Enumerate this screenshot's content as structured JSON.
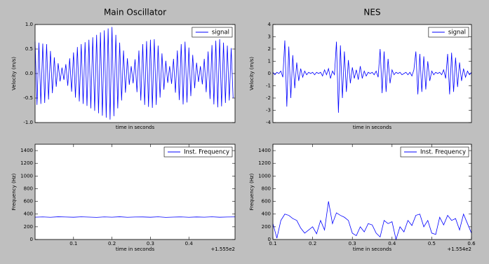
{
  "chart_data": [
    {
      "type": "line",
      "title": "Main Oscillator",
      "xlabel": "time in seconds",
      "ylabel": "Velocity (m/s)",
      "x": [
        0,
        0.005,
        0.01,
        0.015,
        0.02,
        0.025,
        0.03,
        0.035,
        0.04,
        0.045,
        0.05,
        0.055,
        0.06,
        0.065,
        0.07,
        0.075,
        0.08,
        0.085,
        0.09,
        0.095,
        0.1,
        0.105,
        0.11,
        0.115,
        0.12,
        0.125,
        0.13,
        0.135,
        0.14,
        0.145,
        0.15,
        0.155,
        0.16,
        0.165,
        0.17,
        0.175,
        0.18,
        0.185,
        0.19,
        0.195,
        0.2,
        0.205,
        0.21,
        0.215,
        0.22,
        0.225,
        0.23,
        0.235,
        0.24,
        0.245,
        0.25,
        0.255,
        0.26,
        0.265,
        0.27,
        0.275,
        0.28,
        0.285,
        0.29,
        0.295,
        0.3,
        0.305,
        0.31,
        0.315,
        0.32,
        0.325,
        0.33,
        0.335,
        0.34,
        0.345,
        0.35,
        0.355,
        0.36,
        0.365,
        0.37,
        0.375,
        0.38,
        0.385,
        0.39,
        0.395,
        0.4,
        0.405,
        0.41,
        0.415,
        0.42,
        0.425,
        0.43,
        0.435,
        0.44,
        0.445,
        0.45,
        0.455,
        0.46,
        0.465,
        0.47,
        0.475,
        0.48,
        0.485,
        0.49,
        0.495,
        0.5,
        0.505,
        0.51,
        0.515
      ],
      "series": [
        {
          "name": "signal",
          "color": "#0000ff",
          "values": [
            0.65,
            -0.64,
            0.63,
            -0.62,
            0.61,
            -0.6,
            0.6,
            -0.53,
            0.46,
            -0.4,
            0.33,
            -0.27,
            0.21,
            -0.16,
            0.12,
            -0.13,
            0.19,
            -0.25,
            0.31,
            -0.37,
            0.43,
            -0.49,
            0.54,
            -0.57,
            0.6,
            -0.62,
            0.64,
            -0.66,
            0.69,
            -0.71,
            0.74,
            -0.76,
            0.79,
            -0.81,
            0.84,
            -0.86,
            0.88,
            -0.9,
            0.92,
            -0.94,
            0.95,
            -0.87,
            0.79,
            -0.71,
            0.63,
            -0.55,
            0.47,
            -0.39,
            0.31,
            -0.23,
            0.15,
            -0.2,
            0.29,
            -0.38,
            0.47,
            -0.55,
            0.6,
            -0.64,
            0.66,
            -0.68,
            0.69,
            -0.7,
            0.7,
            -0.64,
            0.57,
            -0.49,
            0.41,
            -0.33,
            0.26,
            -0.19,
            0.15,
            -0.21,
            0.3,
            -0.39,
            0.47,
            -0.54,
            0.6,
            -0.63,
            0.65,
            -0.59,
            0.53,
            -0.46,
            0.38,
            -0.3,
            0.22,
            -0.17,
            0.15,
            -0.22,
            0.3,
            -0.38,
            0.45,
            -0.52,
            0.58,
            -0.63,
            0.67,
            -0.69,
            0.7,
            -0.67,
            0.63,
            -0.6,
            0.57,
            -0.55,
            0.52,
            -0.5
          ]
        }
      ],
      "xlim": [
        0,
        0.52
      ],
      "ylim": [
        -1,
        1
      ],
      "yticks": [
        {
          "value": -1,
          "label": "-1.0"
        },
        {
          "value": -0.5,
          "label": "-0.5"
        },
        {
          "value": 0,
          "label": "0.0"
        },
        {
          "value": 0.5,
          "label": "0.5"
        },
        {
          "value": 1,
          "label": "1.0"
        }
      ],
      "legend": "upper right"
    },
    {
      "type": "line",
      "title": "NES",
      "xlabel": "time in seconds",
      "ylabel": "Velocity (m/s)",
      "x": [
        0.1,
        0.105,
        0.11,
        0.115,
        0.12,
        0.125,
        0.13,
        0.135,
        0.14,
        0.145,
        0.15,
        0.155,
        0.16,
        0.165,
        0.17,
        0.175,
        0.18,
        0.185,
        0.19,
        0.195,
        0.2,
        0.205,
        0.21,
        0.215,
        0.22,
        0.225,
        0.23,
        0.235,
        0.24,
        0.245,
        0.25,
        0.255,
        0.26,
        0.265,
        0.27,
        0.275,
        0.28,
        0.285,
        0.29,
        0.295,
        0.3,
        0.305,
        0.31,
        0.315,
        0.32,
        0.325,
        0.33,
        0.335,
        0.34,
        0.345,
        0.35,
        0.355,
        0.36,
        0.365,
        0.37,
        0.375,
        0.38,
        0.385,
        0.39,
        0.395,
        0.4,
        0.405,
        0.41,
        0.415,
        0.42,
        0.425,
        0.43,
        0.435,
        0.44,
        0.445,
        0.45,
        0.455,
        0.46,
        0.465,
        0.47,
        0.475,
        0.48,
        0.485,
        0.49,
        0.495,
        0.5,
        0.505,
        0.51,
        0.515,
        0.52,
        0.525,
        0.53,
        0.535,
        0.54,
        0.545,
        0.55,
        0.555,
        0.56,
        0.565,
        0.57,
        0.575,
        0.58,
        0.585,
        0.59,
        0.595,
        0.6
      ],
      "series": [
        {
          "name": "signal",
          "color": "#0000ff",
          "values": [
            0.1,
            -0.1,
            0.1,
            0,
            0.2,
            -0.3,
            2.7,
            -2.7,
            2.2,
            -2.0,
            1.5,
            -1.2,
            0.9,
            -0.6,
            0.4,
            -0.3,
            0.2,
            -0.1,
            0.1,
            0,
            0.1,
            -0.1,
            0.1,
            0,
            0.1,
            -0.2,
            0.3,
            -0.1,
            0.4,
            -0.4,
            0.2,
            -0.1,
            2.6,
            -3.2,
            2.3,
            -2.0,
            1.8,
            -1.5,
            1.1,
            -0.8,
            0.5,
            -0.4,
            0.3,
            -0.5,
            0.6,
            -0.4,
            0.2,
            -0.2,
            0.1,
            0,
            0.1,
            -0.1,
            0.2,
            -0.3,
            2.0,
            -1.6,
            1.8,
            -1.5,
            1.2,
            -0.8,
            0.3,
            -0.1,
            0.1,
            0,
            0.1,
            -0.1,
            0,
            0.1,
            -0.1,
            0.1,
            -0.2,
            0.3,
            1.8,
            -1.7,
            1.6,
            -1.5,
            1.4,
            -1.3,
            1.0,
            -0.6,
            0.2,
            -0.1,
            0.1,
            0,
            0.1,
            -0.1,
            0.3,
            -0.4,
            1.6,
            -1.7,
            1.7,
            -1.5,
            1.3,
            -1.1,
            0.9,
            -0.6,
            0.4,
            -0.3,
            0.2,
            -0.1,
            0.1
          ]
        }
      ],
      "xlim": [
        0.1,
        0.6
      ],
      "ylim": [
        -4,
        4
      ],
      "yticks": [
        -4,
        -3,
        -2,
        -1,
        0,
        1,
        2,
        3,
        4
      ],
      "legend": "upper right"
    },
    {
      "type": "line",
      "xlabel": "time in seconds",
      "ylabel": "Frequency (Hz)",
      "x": [
        0,
        0.02,
        0.04,
        0.06,
        0.08,
        0.1,
        0.12,
        0.14,
        0.16,
        0.18,
        0.2,
        0.22,
        0.24,
        0.26,
        0.28,
        0.3,
        0.32,
        0.34,
        0.36,
        0.38,
        0.4,
        0.42,
        0.44,
        0.46,
        0.48,
        0.5,
        0.52
      ],
      "series": [
        {
          "name": "Inst. Frequency",
          "color": "#0000ff",
          "values": [
            352,
            356,
            350,
            358,
            354,
            351,
            357,
            353,
            349,
            356,
            352,
            358,
            350,
            354,
            355,
            351,
            357,
            349,
            353,
            356,
            350,
            355,
            352,
            357,
            351,
            354,
            356
          ]
        }
      ],
      "xlim": [
        0,
        0.52
      ],
      "ylim": [
        0,
        1500
      ],
      "yticks": [
        0,
        200,
        400,
        600,
        800,
        1000,
        1200,
        1400
      ],
      "xticks": [
        0.1,
        0.2,
        0.3,
        0.4
      ],
      "x_offset_label": "+1.555e2",
      "legend": "upper right"
    },
    {
      "type": "line",
      "xlabel": "time in seconds",
      "ylabel": "Frequency (Hz)",
      "x": [
        0.1,
        0.11,
        0.12,
        0.13,
        0.14,
        0.15,
        0.16,
        0.17,
        0.18,
        0.19,
        0.2,
        0.21,
        0.22,
        0.23,
        0.24,
        0.25,
        0.26,
        0.27,
        0.28,
        0.29,
        0.3,
        0.31,
        0.32,
        0.33,
        0.34,
        0.35,
        0.36,
        0.37,
        0.38,
        0.39,
        0.4,
        0.41,
        0.42,
        0.43,
        0.44,
        0.45,
        0.46,
        0.47,
        0.48,
        0.49,
        0.5,
        0.51,
        0.52,
        0.53,
        0.54,
        0.55,
        0.56,
        0.57,
        0.58,
        0.59,
        0.6
      ],
      "series": [
        {
          "name": "Inst. Frequency",
          "color": "#0000ff",
          "values": [
            250,
            20,
            300,
            400,
            380,
            330,
            300,
            180,
            100,
            150,
            200,
            90,
            300,
            150,
            600,
            250,
            420,
            380,
            350,
            300,
            100,
            60,
            200,
            120,
            250,
            230,
            100,
            40,
            300,
            250,
            280,
            0,
            200,
            120,
            300,
            220,
            380,
            400,
            200,
            300,
            100,
            80,
            350,
            230,
            380,
            300,
            330,
            150,
            400,
            250,
            100
          ]
        }
      ],
      "xlim": [
        0.1,
        0.6
      ],
      "ylim": [
        0,
        1500
      ],
      "yticks": [
        0,
        200,
        400,
        600,
        800,
        1000,
        1200,
        1400
      ],
      "xticks": [
        0.1,
        0.2,
        0.3,
        0.4,
        0.5,
        0.6
      ],
      "x_offset_label": "+1.554e2",
      "legend": "upper right"
    }
  ]
}
